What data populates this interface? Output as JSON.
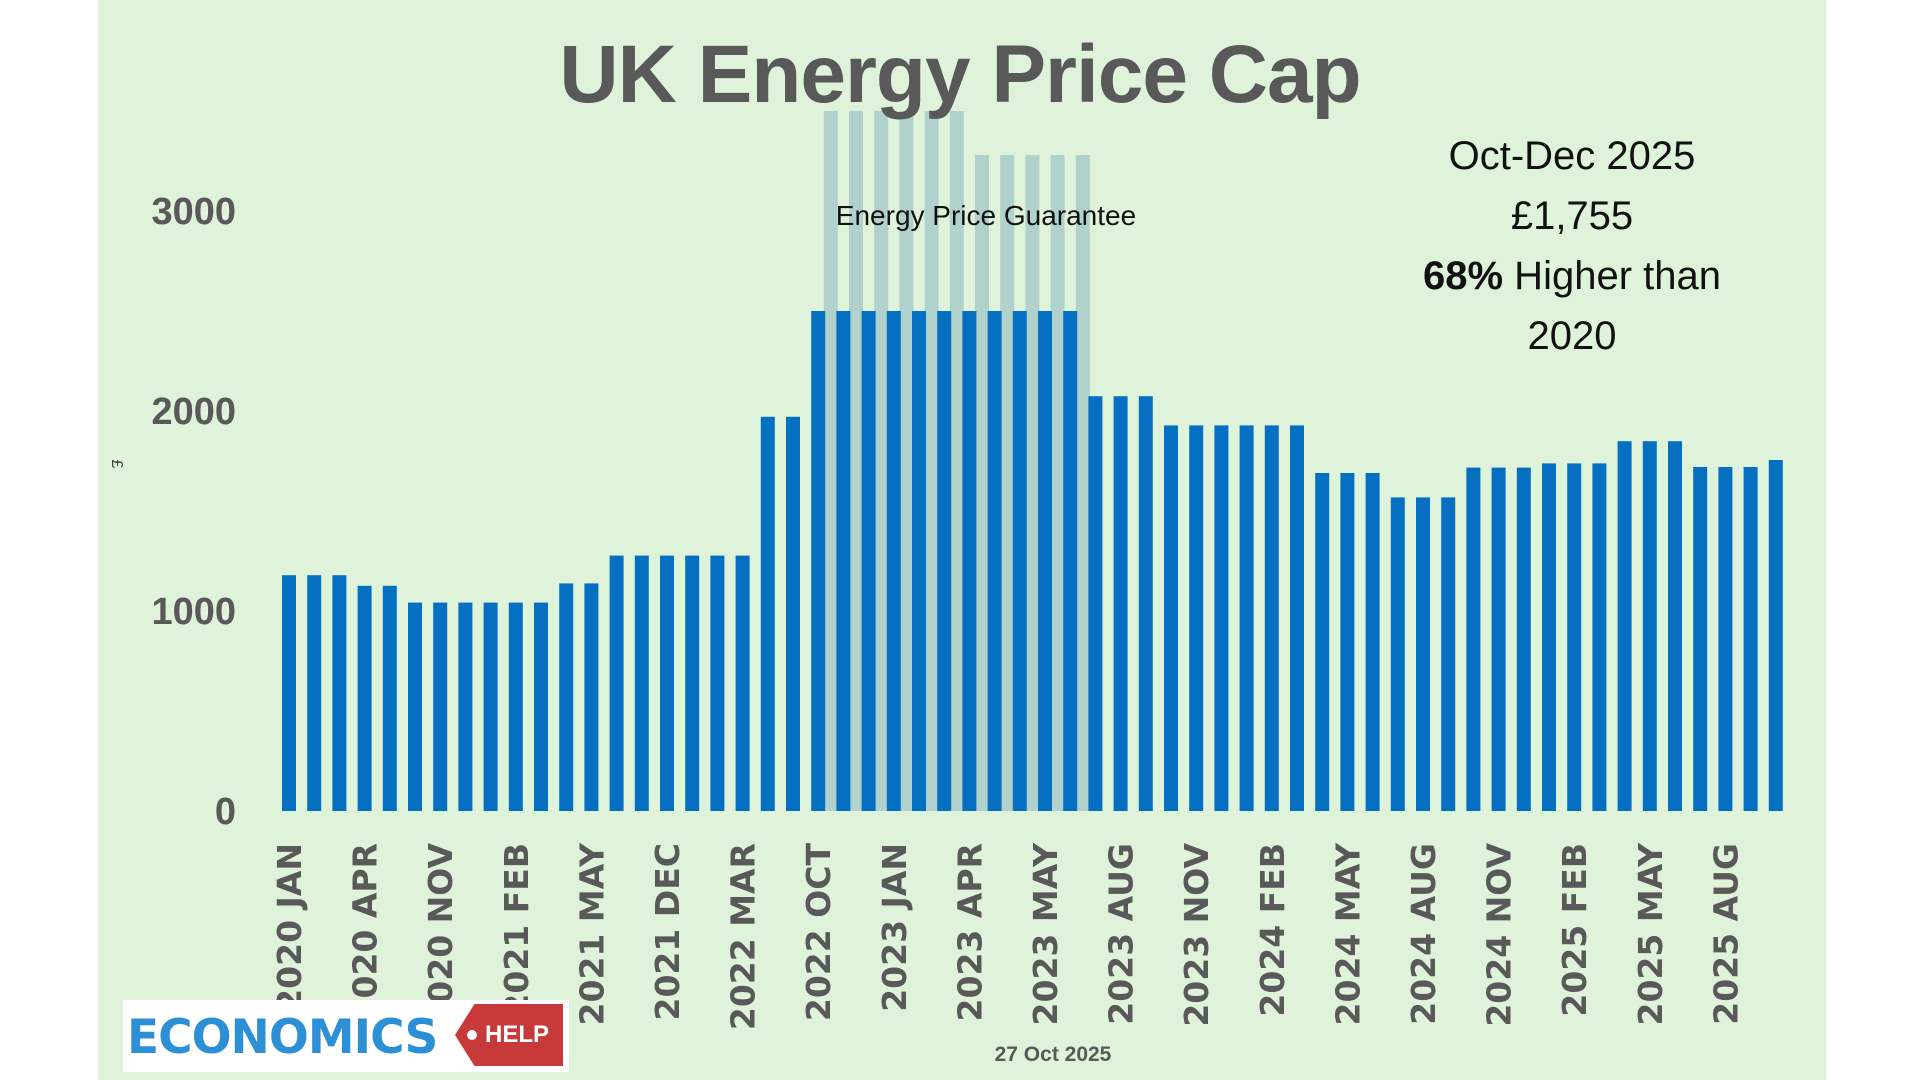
{
  "chart_data": {
    "type": "bar",
    "title": "UK Energy Price Cap",
    "ylabel": "£",
    "xlabel": "",
    "ylim": [
      0,
      3500
    ],
    "yticks": [
      0,
      1000,
      2000,
      3000
    ],
    "grid": false,
    "categories": [
      "2020 JAN",
      "",
      "",
      "2020 APR",
      "",
      "",
      "2020 NOV",
      "",
      "",
      "2021 FEB",
      "",
      "",
      "2021 MAY",
      "",
      "",
      "2021 DEC",
      "",
      "",
      "2022 MAR",
      "",
      "",
      "2022 OCT",
      "",
      "",
      "2023 JAN",
      "",
      "",
      "2023 APR",
      "",
      "",
      "2023 MAY",
      "",
      "",
      "2023 AUG",
      "",
      "",
      "2023 NOV",
      "",
      "",
      "2024 FEB",
      "",
      "",
      "2024 MAY",
      "",
      "",
      "2024 AUG",
      "",
      "",
      "2024 NOV",
      "",
      "",
      "2025 FEB",
      "",
      "",
      "2025 MAY",
      "",
      "",
      "2025 AUG",
      "",
      ""
    ],
    "values": [
      1179,
      1179,
      1179,
      1126,
      1126,
      1042,
      1042,
      1042,
      1042,
      1042,
      1042,
      1138,
      1138,
      1277,
      1277,
      1277,
      1277,
      1277,
      1277,
      1971,
      1971,
      2500,
      2500,
      2500,
      2500,
      2500,
      2500,
      2500,
      2500,
      2500,
      2500,
      2500,
      2074,
      2074,
      2074,
      1928,
      1928,
      1928,
      1928,
      1928,
      1928,
      1690,
      1690,
      1690,
      1568,
      1568,
      1568,
      1717,
      1717,
      1717,
      1738,
      1738,
      1738,
      1849,
      1849,
      1849,
      1720,
      1720,
      1720,
      1755
    ],
    "price_cap_overlay": {
      "label": "Energy Price Guarantee",
      "start_index": 21,
      "values": [
        3500,
        3500,
        3500,
        3500,
        3500,
        3500,
        3280,
        3280,
        3280,
        3280,
        3280
      ]
    },
    "annotation": {
      "line1": "Oct-Dec 2025",
      "line2": "£1,755",
      "line3_bold": "68%",
      "line3_rest": " Higher than",
      "line4": "2020"
    },
    "colors": {
      "bar": "#0570c1",
      "overlay": "#a9cbc9",
      "background": "#dff3da",
      "text": "#595959"
    }
  },
  "footer": {
    "date": "27 Oct 2025"
  },
  "logo": {
    "word": "ECONOMICS",
    "tag": "HELP"
  }
}
